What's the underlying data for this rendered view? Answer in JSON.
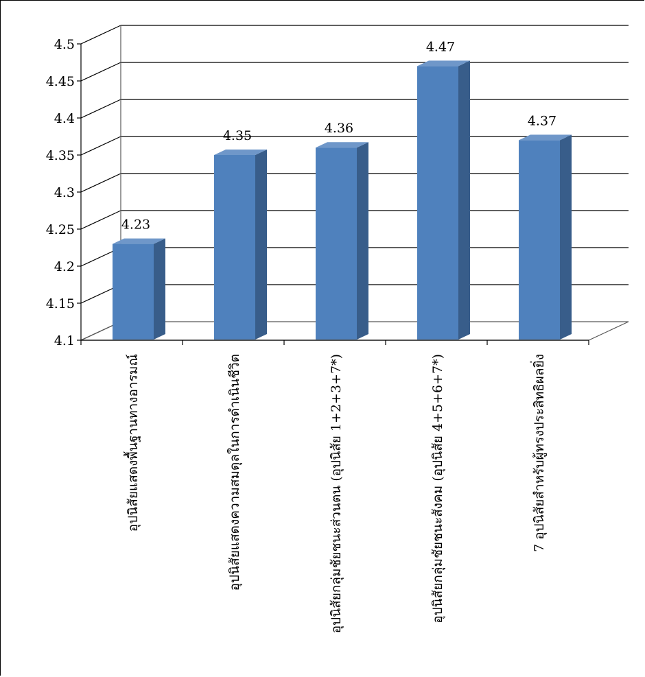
{
  "chart_data": {
    "type": "bar",
    "style": "3d-column",
    "categories": [
      "อุปนิสัยแสดงพื้นฐานทางอารมณ์",
      "อุปนิสัยแสดงความสมดุลในการดำเนินชีวิต",
      "อุปนิสัยกลุ่มชัยชนะส่วนตน (อุปนิสัย 1+2+3+7*)",
      "อุปนิสัยกลุ่มชัยชนะสังคม (อุปนิสัย 4+5+6+7*)",
      "7 อุปนิสัยสำหรับผู้ทรงประสิทธิผลยิ่ง"
    ],
    "values": [
      4.23,
      4.35,
      4.36,
      4.47,
      4.37
    ],
    "value_labels": [
      "4.23",
      "4.35",
      "4.36",
      "4.47",
      "4.37"
    ],
    "ylim": [
      4.1,
      4.5
    ],
    "yticks": [
      4.1,
      4.15,
      4.2,
      4.25,
      4.3,
      4.35,
      4.4,
      4.45,
      4.5
    ],
    "ytick_labels": [
      "4.1",
      "4.15",
      "4.2",
      "4.25",
      "4.3",
      "4.35",
      "4.4",
      "4.45",
      "4.5"
    ],
    "grid": true,
    "legend": "none",
    "colors": {
      "bar_front": "#4f81bd",
      "bar_side": "#385d8a",
      "bar_top": "#6f97c9",
      "grid": "#000000",
      "wall_line": "#595959"
    }
  }
}
